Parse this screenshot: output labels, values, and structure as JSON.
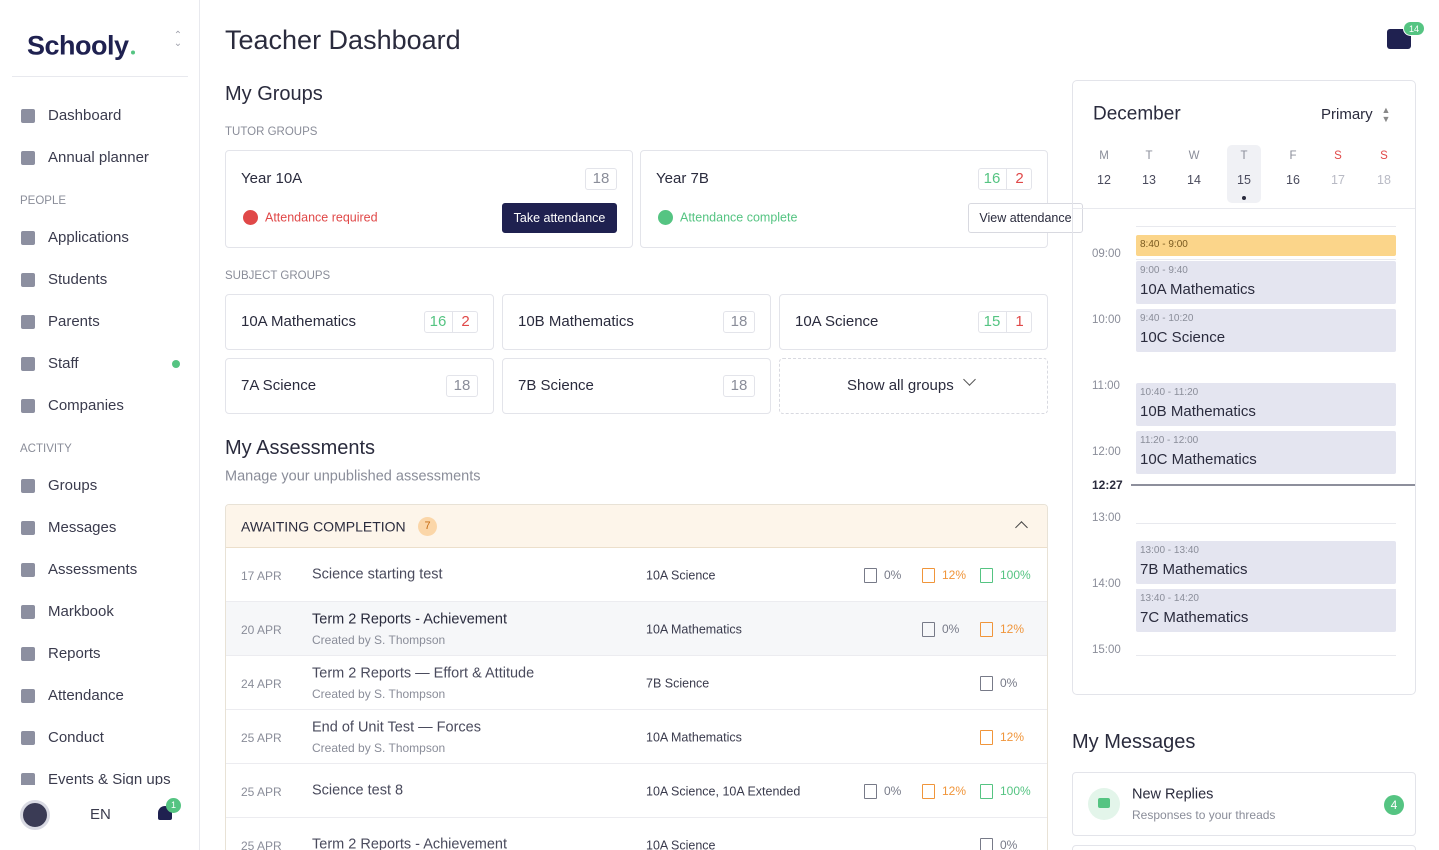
{
  "sidebar": {
    "logo": "Schooly",
    "nav": [
      "Dashboard",
      "Annual planner"
    ],
    "people": {
      "title": "PEOPLE",
      "items": [
        "Applications",
        "Students",
        "Parents",
        "Staff",
        "Companies"
      ]
    },
    "activity": {
      "title": "ACTIVITY",
      "items": [
        "Groups",
        "Messages",
        "Assessments",
        "Markbook",
        "Reports",
        "Attendance",
        "Conduct",
        "Events & Sign ups"
      ]
    },
    "footer": {
      "language": "EN",
      "notifications": 1
    }
  },
  "header": {
    "title": "Teacher Dashboard",
    "message_count": 14
  },
  "groups": {
    "title": "My Groups",
    "tutor_title": "TUTOR GROUPS",
    "tutor": [
      {
        "name": "Year 10A",
        "counts": [
          18
        ],
        "status": "Attendance required",
        "action": "Take attendance"
      },
      {
        "name": "Year 7B",
        "counts": [
          16,
          2
        ],
        "status": "Attendance complete",
        "action": "View attendance"
      }
    ],
    "subject_title": "SUBJECT GROUPS",
    "subject": [
      {
        "name": "10A Mathematics",
        "counts": [
          16,
          2
        ]
      },
      {
        "name": "10B Mathematics",
        "counts": [
          18
        ]
      },
      {
        "name": "10A Science",
        "counts": [
          15,
          1
        ]
      },
      {
        "name": "7A Science",
        "counts": [
          18
        ]
      },
      {
        "name": "7B Science",
        "counts": [
          18
        ]
      }
    ],
    "show_all": "Show all groups"
  },
  "assessments": {
    "title": "My Assessments",
    "subtitle": "Manage your unpublished assessments",
    "section": "AWAITING COMPLETION",
    "count": 7,
    "rows": [
      {
        "date": "17 APR",
        "title": "Science starting test",
        "group": "10A Science",
        "stats": [
          {
            "kind": "marks",
            "value": "0%"
          },
          {
            "kind": "grades",
            "value": "12%"
          },
          {
            "kind": "comments",
            "value": "100%"
          }
        ]
      },
      {
        "date": "20 APR",
        "title": "Term 2 Reports - Achievement",
        "creator": "Created by S. Thompson",
        "group": "10A Mathematics",
        "stats": [
          {
            "kind": "marks",
            "value": "0%"
          },
          {
            "kind": "grades",
            "value": "12%"
          }
        ]
      },
      {
        "date": "24 APR",
        "title": "Term 2 Reports — Effort & Attitude",
        "creator": "Created by S. Thompson",
        "group": "7B Science",
        "stats": [
          {
            "kind": "marks",
            "value": "0%"
          }
        ]
      },
      {
        "date": "25 APR",
        "title": "End of Unit Test — Forces",
        "creator": "Created by S. Thompson",
        "group": "10A Mathematics",
        "stats": [
          {
            "kind": "grades",
            "value": "12%"
          }
        ]
      },
      {
        "date": "25 APR",
        "title": "Science test 8",
        "group": "10A Science, 10A Extended",
        "stats": [
          {
            "kind": "marks",
            "value": "0%"
          },
          {
            "kind": "grades",
            "value": "12%"
          },
          {
            "kind": "comments",
            "value": "100%"
          }
        ]
      },
      {
        "date": "25 APR",
        "title": "Term 2 Reports - Achievement",
        "group": "10A Science",
        "stats": [
          {
            "kind": "marks",
            "value": "0%"
          }
        ]
      }
    ]
  },
  "calendar": {
    "month": "December",
    "view": "Primary",
    "days": [
      {
        "letter": "M",
        "date": 12
      },
      {
        "letter": "T",
        "date": 13
      },
      {
        "letter": "W",
        "date": 14
      },
      {
        "letter": "T",
        "date": 15
      },
      {
        "letter": "F",
        "date": 16
      },
      {
        "letter": "S",
        "date": 17
      },
      {
        "letter": "S",
        "date": 18
      }
    ],
    "times": [
      "09:00",
      "10:00",
      "11:00",
      "12:00",
      "13:00",
      "14:00",
      "15:00"
    ],
    "now": "12:27",
    "events": [
      {
        "time": "8:40 - 9:00"
      },
      {
        "time": "9:00 - 9:40",
        "title": "10A Mathematics"
      },
      {
        "time": "9:40 - 10:20",
        "title": "10C Science"
      },
      {
        "time": "10:40 - 11:20",
        "title": "10B Mathematics"
      },
      {
        "time": "11:20 - 12:00",
        "title": "10C Mathematics"
      },
      {
        "time": "13:00 - 13:40",
        "title": "7B Mathematics"
      },
      {
        "time": "13:40 - 14:20",
        "title": "7C Mathematics"
      }
    ]
  },
  "messages": {
    "title": "My Messages",
    "items": [
      {
        "title": "New Replies",
        "subtitle": "Responses to your threads",
        "count": 4
      }
    ]
  }
}
